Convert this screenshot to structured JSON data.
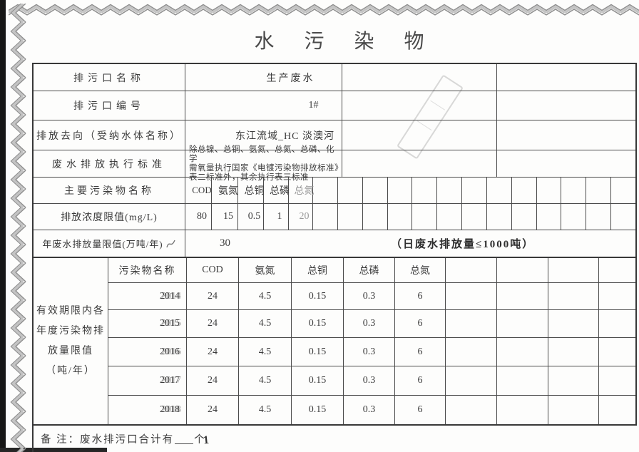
{
  "title": "水污染物",
  "info_rows": [
    {
      "label": "排污口名称",
      "value": "生产废水"
    },
    {
      "label": "排污口编号",
      "value": "1#"
    },
    {
      "label": "排放去向（受纳水体名称）",
      "value": "东江流域_HC 淡澳河"
    },
    {
      "label": "废水排放执行标准"
    }
  ],
  "standard_lines": [
    "除总镍、总铜、氨氮、总氮、总磷、化学",
    "需氧量执行国家《电镀污染物排放标准》",
    "表二标准外，其余执行表三标准"
  ],
  "pollutant_row": {
    "label": "主要污染物名称",
    "columns": [
      "COD",
      "氨氮",
      "总铜",
      "总磷",
      "总氮"
    ]
  },
  "limits_row": {
    "label": "排放浓度限值(mg/L)",
    "values": [
      "80",
      "15",
      "0.5",
      "1",
      "20"
    ]
  },
  "annual_row": {
    "label": "年废水排放量限值(万吨/年)",
    "value": "30",
    "stamp_note": "（日废水排放量≤1000吨）"
  },
  "yearly": {
    "side_lines": [
      "有效期限内各",
      "年度污染物排",
      "放量限值",
      "（吨/年）"
    ],
    "header": [
      "污染物名称",
      "COD",
      "氨氮",
      "总铜",
      "总磷",
      "总氮"
    ],
    "rows": [
      {
        "year": "2014",
        "values": [
          "24",
          "4.5",
          "0.15",
          "0.3",
          "6"
        ]
      },
      {
        "year": "2015",
        "values": [
          "24",
          "4.5",
          "0.15",
          "0.3",
          "6"
        ]
      },
      {
        "year": "2016",
        "values": [
          "24",
          "4.5",
          "0.15",
          "0.3",
          "6"
        ]
      },
      {
        "year": "2017",
        "values": [
          "24",
          "4.5",
          "0.15",
          "0.3",
          "6"
        ]
      },
      {
        "year": "2018",
        "values": [
          "24",
          "4.5",
          "0.15",
          "0.3",
          "6"
        ]
      }
    ]
  },
  "note": {
    "prefix": "备 注：废水排污口合计有",
    "suffix": "个",
    "handwritten": "1"
  },
  "colors": {
    "ink": "#3c3c3c",
    "border": "#4b4b4b",
    "stamp": "#2e2e2e",
    "zigzag": "#9a9a9a"
  }
}
